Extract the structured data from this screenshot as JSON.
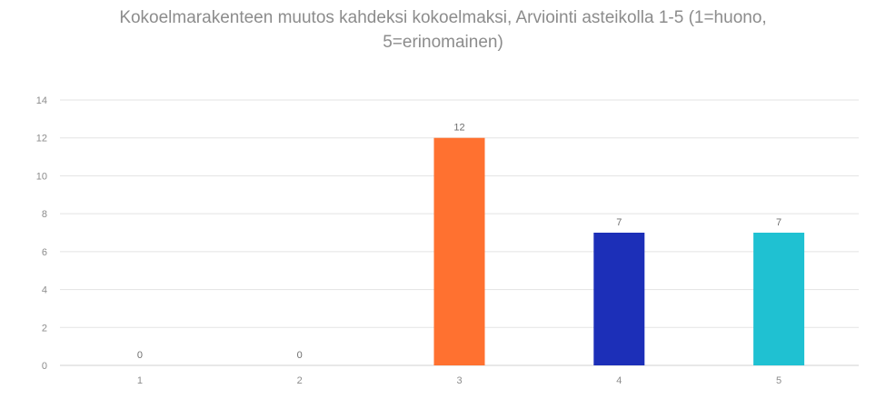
{
  "chart_data": {
    "type": "bar",
    "title_line1": "Kokoelmarakenteen muutos kahdeksi kokoelmaksi, Arviointi asteikolla 1-5 (1=huono,",
    "title_line2": "5=erinomainen)",
    "categories": [
      "1",
      "2",
      "3",
      "4",
      "5"
    ],
    "values": [
      0,
      0,
      12,
      7,
      7
    ],
    "bar_colors": [
      "#ff7130",
      "#ff7130",
      "#ff7130",
      "#1c2fb8",
      "#1fc1d2"
    ],
    "ylim": [
      0,
      14
    ],
    "yticks": [
      0,
      2,
      4,
      6,
      8,
      10,
      12,
      14
    ],
    "xlabel": "",
    "ylabel": "",
    "grid": true,
    "data_labels": true
  }
}
